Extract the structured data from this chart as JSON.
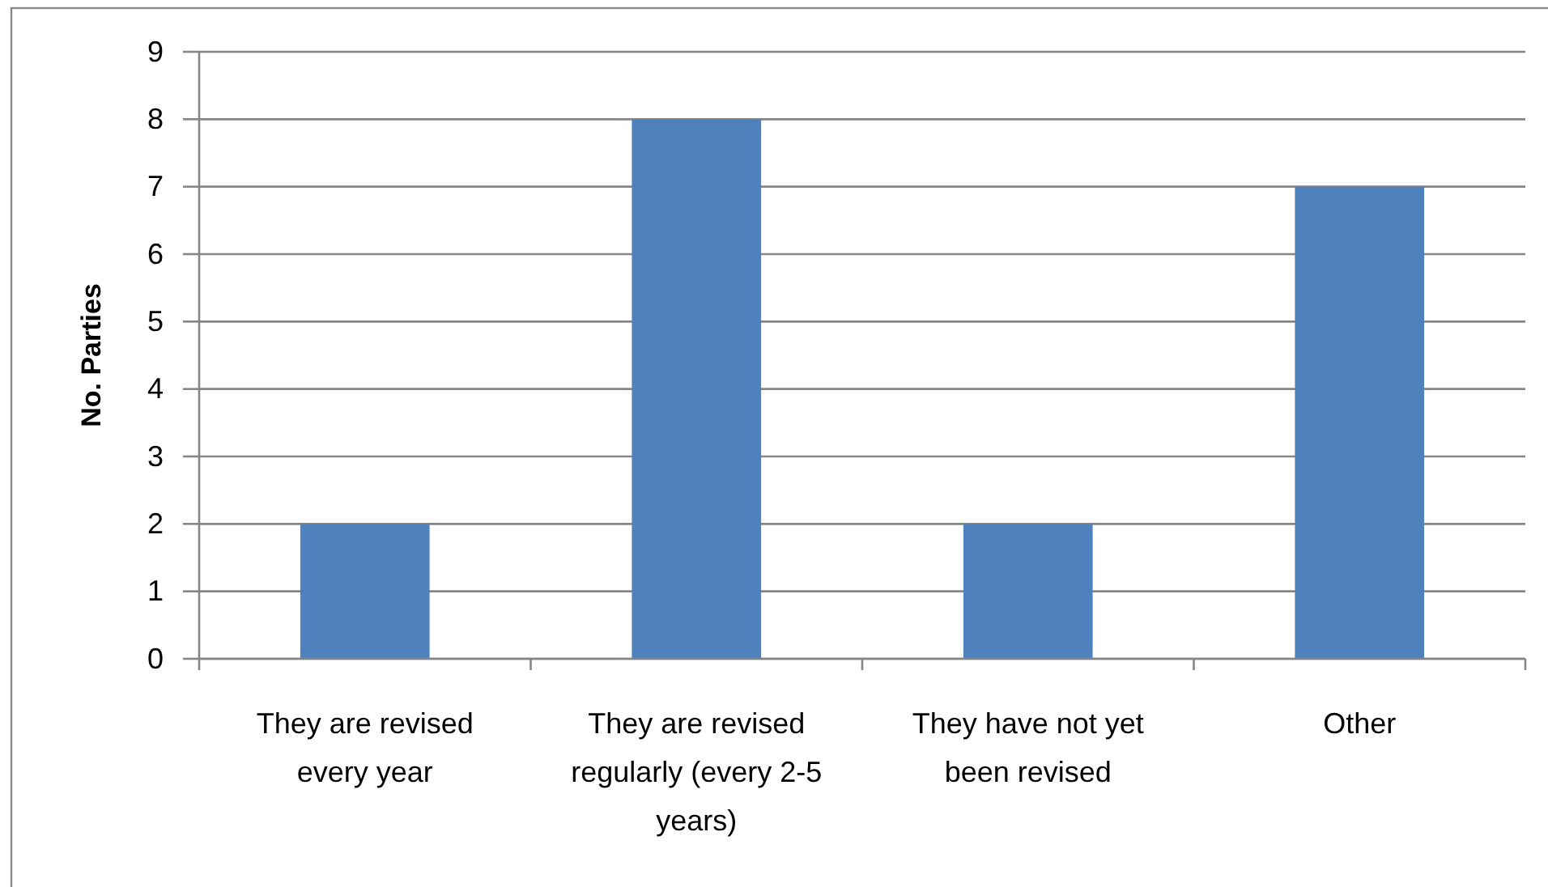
{
  "chart_data": {
    "type": "bar",
    "categories": [
      "They are revised every year",
      "They are revised regularly (every 2-5 years)",
      "They have not yet been revised",
      "Other"
    ],
    "values": [
      2,
      8,
      2,
      7
    ],
    "color": "#4f81bd",
    "ylabel": "No. Parties",
    "ylim": [
      0,
      9
    ],
    "yticks": [
      0,
      1,
      2,
      3,
      4,
      5,
      6,
      7,
      8,
      9
    ],
    "grid": "y"
  }
}
